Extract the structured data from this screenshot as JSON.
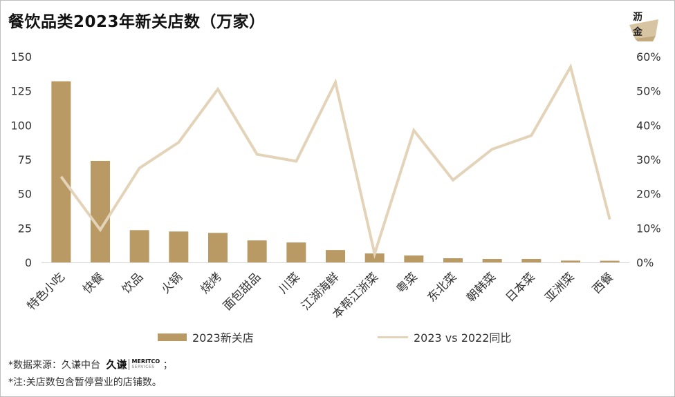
{
  "header": {
    "title": "餐饮品类2023年新关店数（万家）"
  },
  "logo": {
    "line1": "沥",
    "line2": "金"
  },
  "chart_data": {
    "type": "bar+line",
    "title": "餐饮品类2023年新关店数（万家）",
    "categories": [
      "特色小吃",
      "快餐",
      "饮品",
      "火锅",
      "烧烤",
      "面包甜品",
      "川菜",
      "江湖海鲜",
      "本帮江浙菜",
      "粤菜",
      "东北菜",
      "朝韩菜",
      "日本菜",
      "亚洲菜",
      "西餐"
    ],
    "series": [
      {
        "name": "2023新关店",
        "type": "bar",
        "axis": "left",
        "color": "#b99a65",
        "values": [
          132,
          74,
          23.5,
          22.5,
          21.5,
          16,
          14.5,
          9,
          6.5,
          5,
          3,
          2.5,
          2.5,
          1.3,
          1.2
        ]
      },
      {
        "name": "2023 vs 2022同比",
        "type": "line",
        "axis": "right",
        "color": "#e3d3b8",
        "values": [
          25,
          9.5,
          27.5,
          35,
          50.5,
          31.5,
          29.5,
          52.5,
          2.5,
          38.5,
          24,
          33,
          37,
          57,
          12.5
        ]
      }
    ],
    "y_left": {
      "min": 0,
      "max": 150,
      "ticks": [
        "0",
        "25",
        "50",
        "75",
        "100",
        "125",
        "150"
      ]
    },
    "y_right": {
      "min": 0,
      "max": 60,
      "ticks": [
        "0%",
        "10%",
        "20%",
        "30%",
        "40%",
        "50%",
        "60%"
      ]
    },
    "grid": false,
    "legend_position": "bottom"
  },
  "footnotes": {
    "source_label": "*数据来源：久谦中台",
    "brand_cn": "久谦",
    "brand_en_top": "MERITCO",
    "brand_en_bottom": "SERVICES",
    "source_tail": "；",
    "note": "*注:关店数包含暂停营业的店铺数。"
  }
}
